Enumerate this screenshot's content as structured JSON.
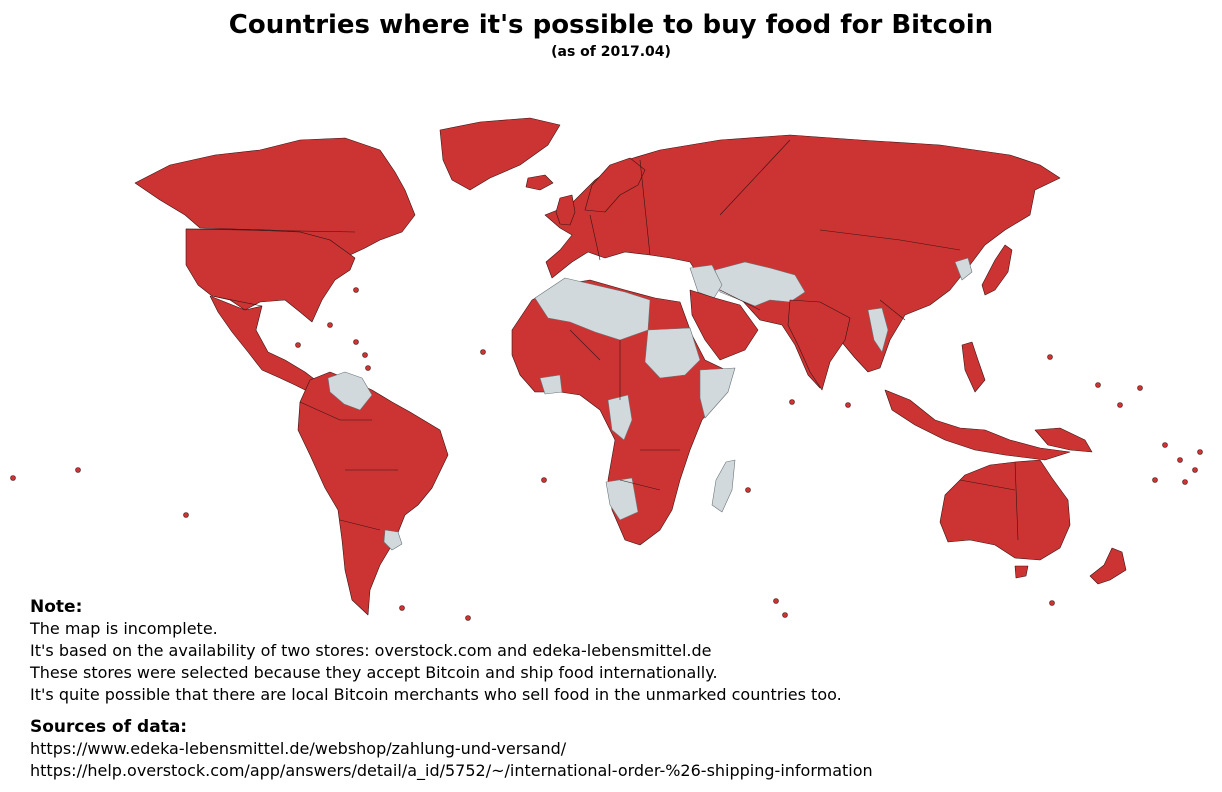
{
  "title": "Countries where it's possible to buy food for Bitcoin",
  "subtitle": "(as of 2017.04)",
  "legend_colors": {
    "marked": "#cc3333",
    "unmarked": "#d2d9dc",
    "border": "#3b1414"
  },
  "note": {
    "heading": "Note:",
    "lines": [
      "The map is incomplete.",
      "It's based on the availability of two stores: overstock.com and edeka-lebensmittel.de",
      "These stores were selected because they accept Bitcoin and ship food internationally.",
      "It's quite possible that there are local Bitcoin merchants who sell food in the unmarked countries too."
    ]
  },
  "sources": {
    "heading": "Sources of data:",
    "lines": [
      "https://www.edeka-lebensmittel.de/webshop/zahlung-und-versand/",
      "https://help.overstock.com/app/answers/detail/a_id/5752/~/international-order-%26-shipping-information"
    ]
  }
}
